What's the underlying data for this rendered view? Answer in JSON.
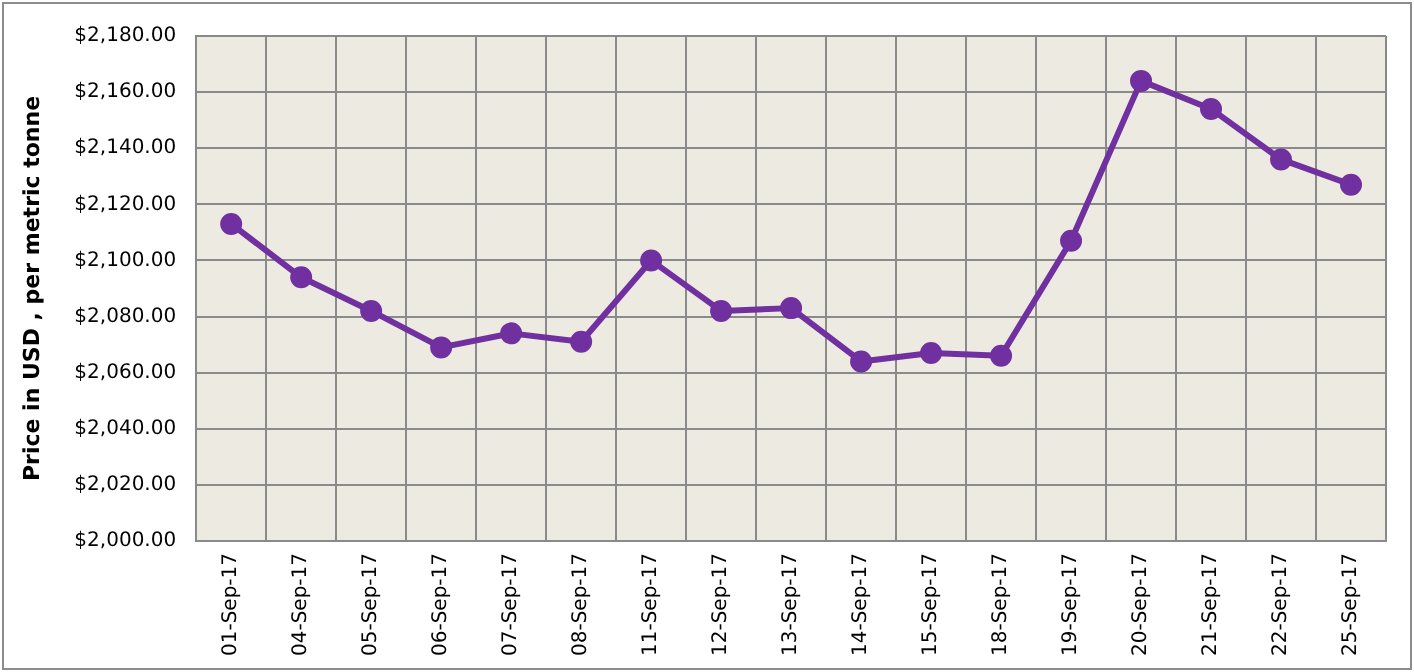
{
  "chart_data": {
    "type": "line",
    "ylabel": "Price in USD , per metric tonne",
    "categories": [
      "01-Sep-17",
      "04-Sep-17",
      "05-Sep-17",
      "06-Sep-17",
      "07-Sep-17",
      "08-Sep-17",
      "11-Sep-17",
      "12-Sep-17",
      "13-Sep-17",
      "14-Sep-17",
      "15-Sep-17",
      "18-Sep-17",
      "19-Sep-17",
      "20-Sep-17",
      "21-Sep-17",
      "22-Sep-17",
      "25-Sep-17"
    ],
    "series": [
      {
        "color": "#7030a0",
        "values": [
          2113,
          2094,
          2082,
          2069,
          2074,
          2071,
          2100,
          2082,
          2083,
          2064,
          2067,
          2066,
          2107,
          2164,
          2154,
          2136,
          2127
        ]
      }
    ],
    "ylim": [
      2000,
      2180
    ],
    "yticks": [
      {
        "value": 2000,
        "label": "$2,000.00"
      },
      {
        "value": 2020,
        "label": "$2,020.00"
      },
      {
        "value": 2040,
        "label": "$2,040.00"
      },
      {
        "value": 2060,
        "label": "$2,060.00"
      },
      {
        "value": 2080,
        "label": "$2,080.00"
      },
      {
        "value": 2100,
        "label": "$2,100.00"
      },
      {
        "value": 2120,
        "label": "$2,120.00"
      },
      {
        "value": 2140,
        "label": "$2,140.00"
      },
      {
        "value": 2160,
        "label": "$2,160.00"
      },
      {
        "value": 2180,
        "label": "$2,180.00"
      }
    ],
    "grid": true,
    "legend": false,
    "marker": "circle",
    "line_style": "solid"
  }
}
